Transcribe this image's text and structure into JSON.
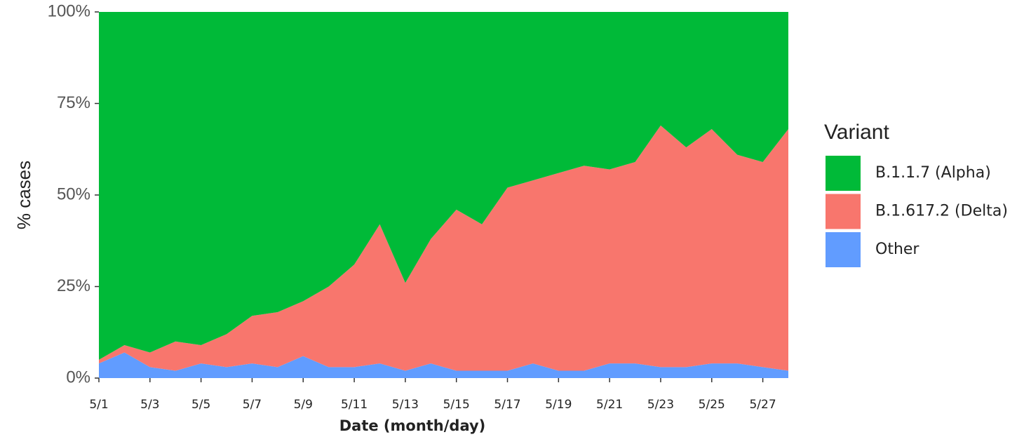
{
  "chart_data": {
    "type": "stacked_area",
    "x_label": "Date (month/day)",
    "y_label": "% cases",
    "legend_title": "Variant",
    "legend_position": "right",
    "categories": [
      "5/1",
      null,
      "5/3",
      null,
      "5/5",
      null,
      "5/7",
      null,
      "5/9",
      null,
      "5/11",
      null,
      "5/13",
      null,
      "5/15",
      null,
      "5/17",
      null,
      "5/19",
      null,
      "5/21",
      null,
      "5/23",
      null,
      "5/25",
      null,
      "5/27",
      null
    ],
    "series": [
      {
        "name": "B.1.1.7 (Alpha)",
        "color": "#00ba38",
        "values": [
          95,
          91,
          93,
          90,
          91,
          88,
          83,
          82,
          79,
          75,
          69,
          58,
          74,
          62,
          54,
          58,
          48,
          46,
          44,
          42,
          43,
          41,
          31,
          37,
          32,
          39,
          41,
          32
        ]
      },
      {
        "name": "B.1.617.2 (Delta)",
        "color": "#f8766d",
        "values": [
          1,
          2,
          4,
          8,
          5,
          9,
          13,
          15,
          15,
          22,
          28,
          38,
          24,
          34,
          44,
          40,
          50,
          50,
          54,
          56,
          53,
          55,
          66,
          60,
          64,
          57,
          56,
          66
        ]
      },
      {
        "name": "Other",
        "color": "#619cff",
        "values": [
          4,
          7,
          3,
          2,
          4,
          3,
          4,
          3,
          6,
          3,
          3,
          4,
          2,
          4,
          2,
          2,
          2,
          4,
          2,
          2,
          4,
          4,
          3,
          3,
          4,
          4,
          3,
          2
        ]
      }
    ],
    "ylim": [
      0,
      100
    ],
    "yticks": [
      {
        "value": 0,
        "label": "0%"
      },
      {
        "value": 25,
        "label": "25%"
      },
      {
        "value": 50,
        "label": "50%"
      },
      {
        "value": 75,
        "label": "75%"
      },
      {
        "value": 100,
        "label": "100%"
      }
    ],
    "grid": false
  }
}
